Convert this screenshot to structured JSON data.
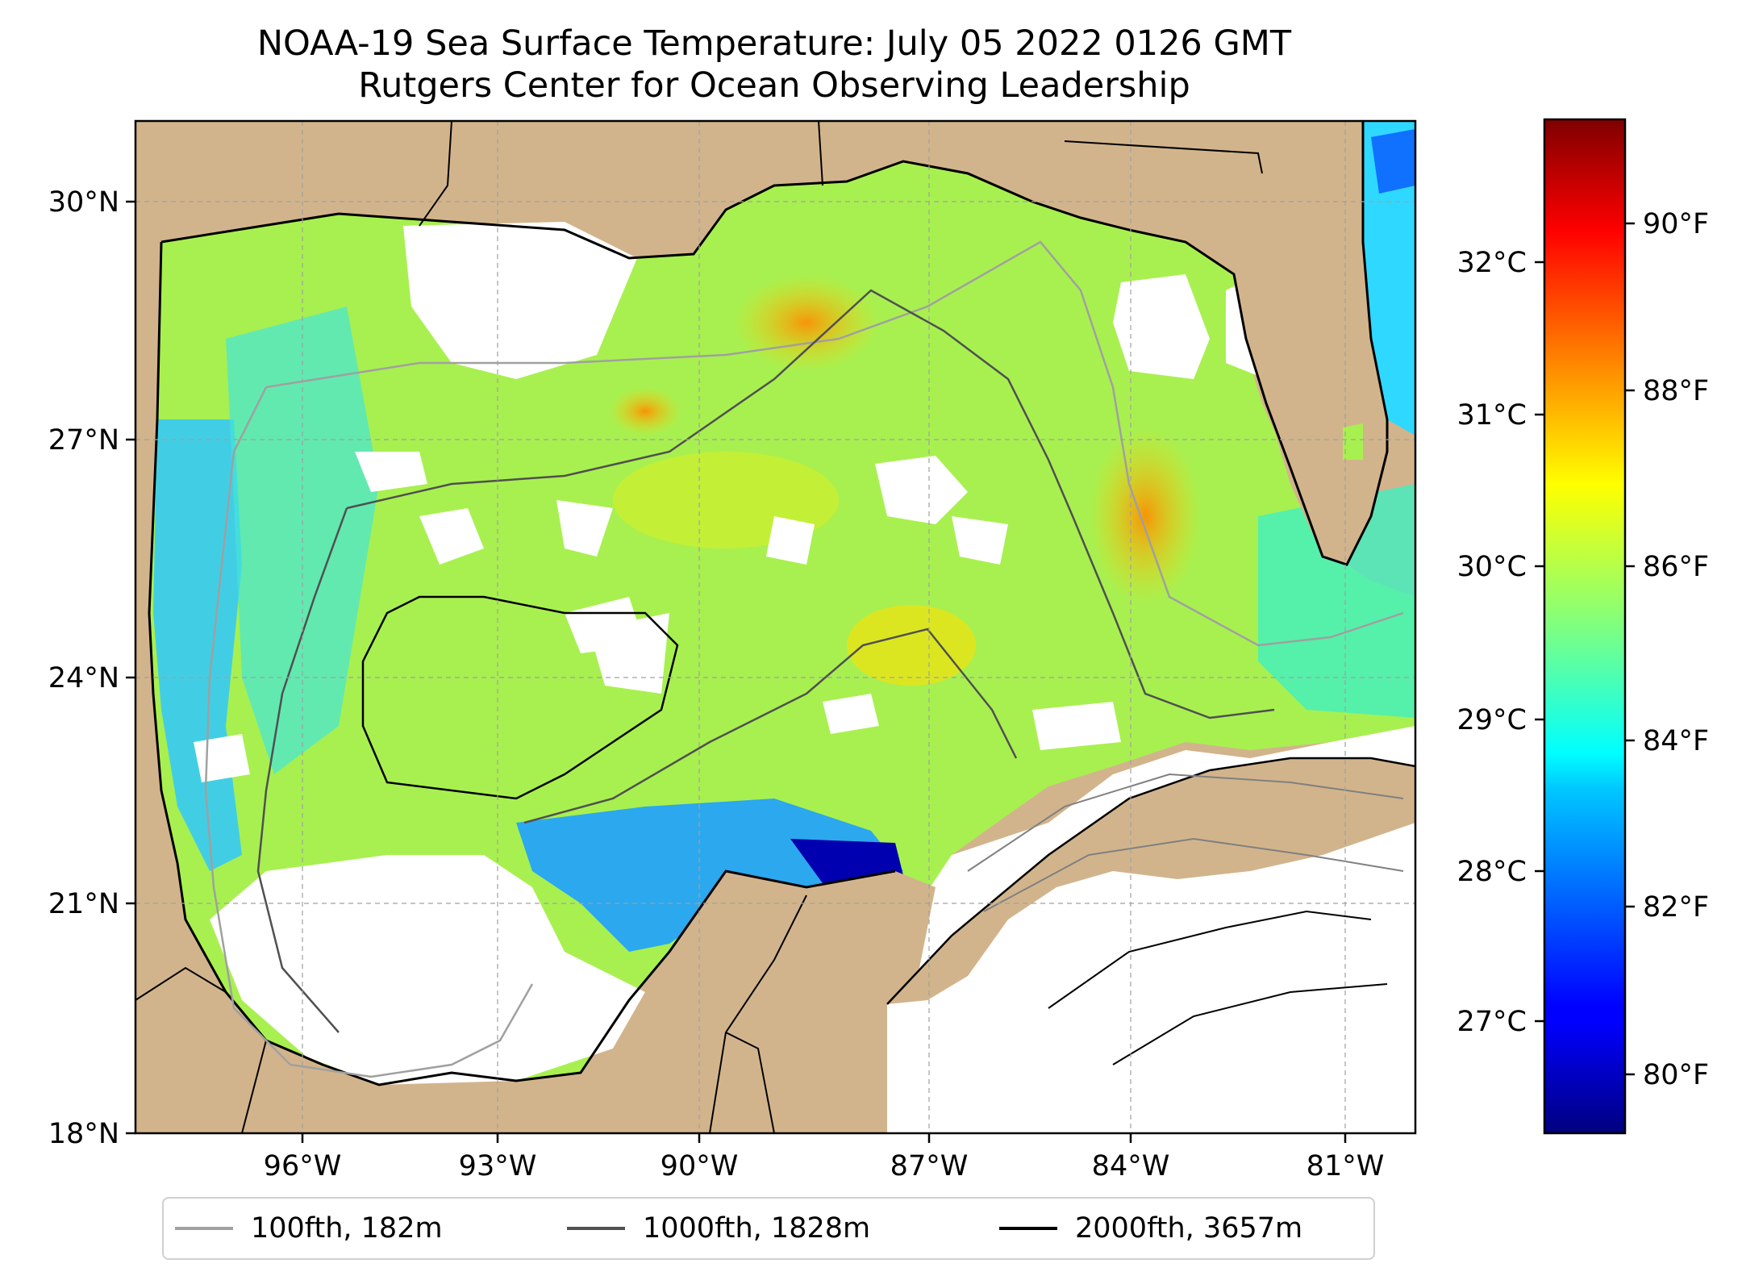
{
  "title": {
    "line1": "NOAA-19 Sea Surface Temperature: July 05 2022 0126 GMT",
    "line2": "Rutgers Center for Ocean Observing Leadership"
  },
  "map": {
    "lat_ticks": [
      "30°N",
      "27°N",
      "24°N",
      "21°N",
      "18°N"
    ],
    "lon_ticks": [
      "96°W",
      "93°W",
      "90°W",
      "87°W",
      "84°W",
      "81°W"
    ],
    "land_color": "#d2b48c",
    "nodata_color": "#ffffff"
  },
  "colorbar": {
    "celsius_ticks": [
      "32°C",
      "31°C",
      "30°C",
      "29°C",
      "28°C",
      "27°C"
    ],
    "fahrenheit_ticks": [
      "90°F",
      "88°F",
      "86°F",
      "84°F",
      "82°F",
      "80°F"
    ],
    "colormap": "jet",
    "range_f": [
      79.2,
      91.5
    ]
  },
  "legend": {
    "items": [
      {
        "label": "100fth, 182m",
        "color": "#a0a0a0"
      },
      {
        "label": "1000fth, 1828m",
        "color": "#505050"
      },
      {
        "label": "2000fth, 3657m",
        "color": "#000000"
      }
    ]
  }
}
